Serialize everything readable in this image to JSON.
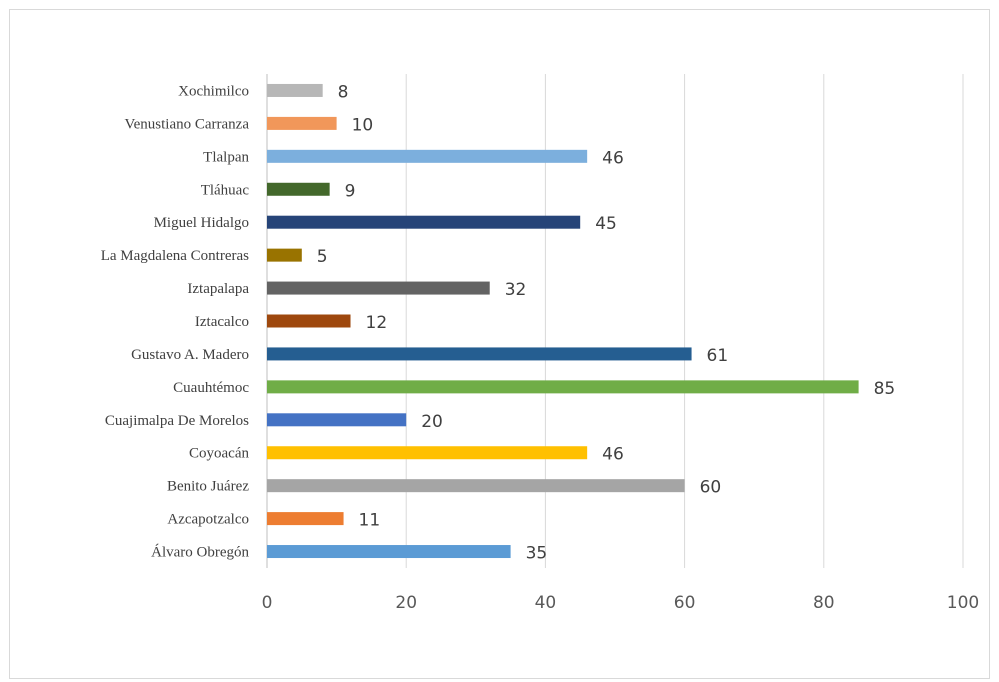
{
  "chart_data": {
    "type": "bar",
    "orientation": "horizontal",
    "title": "",
    "xlabel": "",
    "ylabel": "",
    "xlim": [
      0,
      100
    ],
    "xticks": [
      0,
      20,
      40,
      60,
      80,
      100
    ],
    "grid": true,
    "legend": "none",
    "categories": [
      "Álvaro Obregón",
      "Azcapotzalco",
      "Benito Juárez",
      "Coyoacán",
      "Cuajimalpa De Morelos",
      "Cuauhtémoc",
      "Gustavo A. Madero",
      "Iztacalco",
      "Iztapalapa",
      "La Magdalena Contreras",
      "Miguel Hidalgo",
      "Tláhuac",
      "Tlalpan",
      "Venustiano Carranza",
      "Xochimilco"
    ],
    "values": [
      35,
      11,
      60,
      46,
      20,
      85,
      61,
      12,
      32,
      5,
      45,
      9,
      46,
      10,
      8
    ],
    "colors": [
      "#5b9bd5",
      "#ed7d31",
      "#a5a5a5",
      "#ffc000",
      "#4472c4",
      "#70ad47",
      "#255e91",
      "#9e480e",
      "#636363",
      "#997300",
      "#264478",
      "#43682b",
      "#7cafdd",
      "#f1975a",
      "#b7b7b7"
    ]
  }
}
